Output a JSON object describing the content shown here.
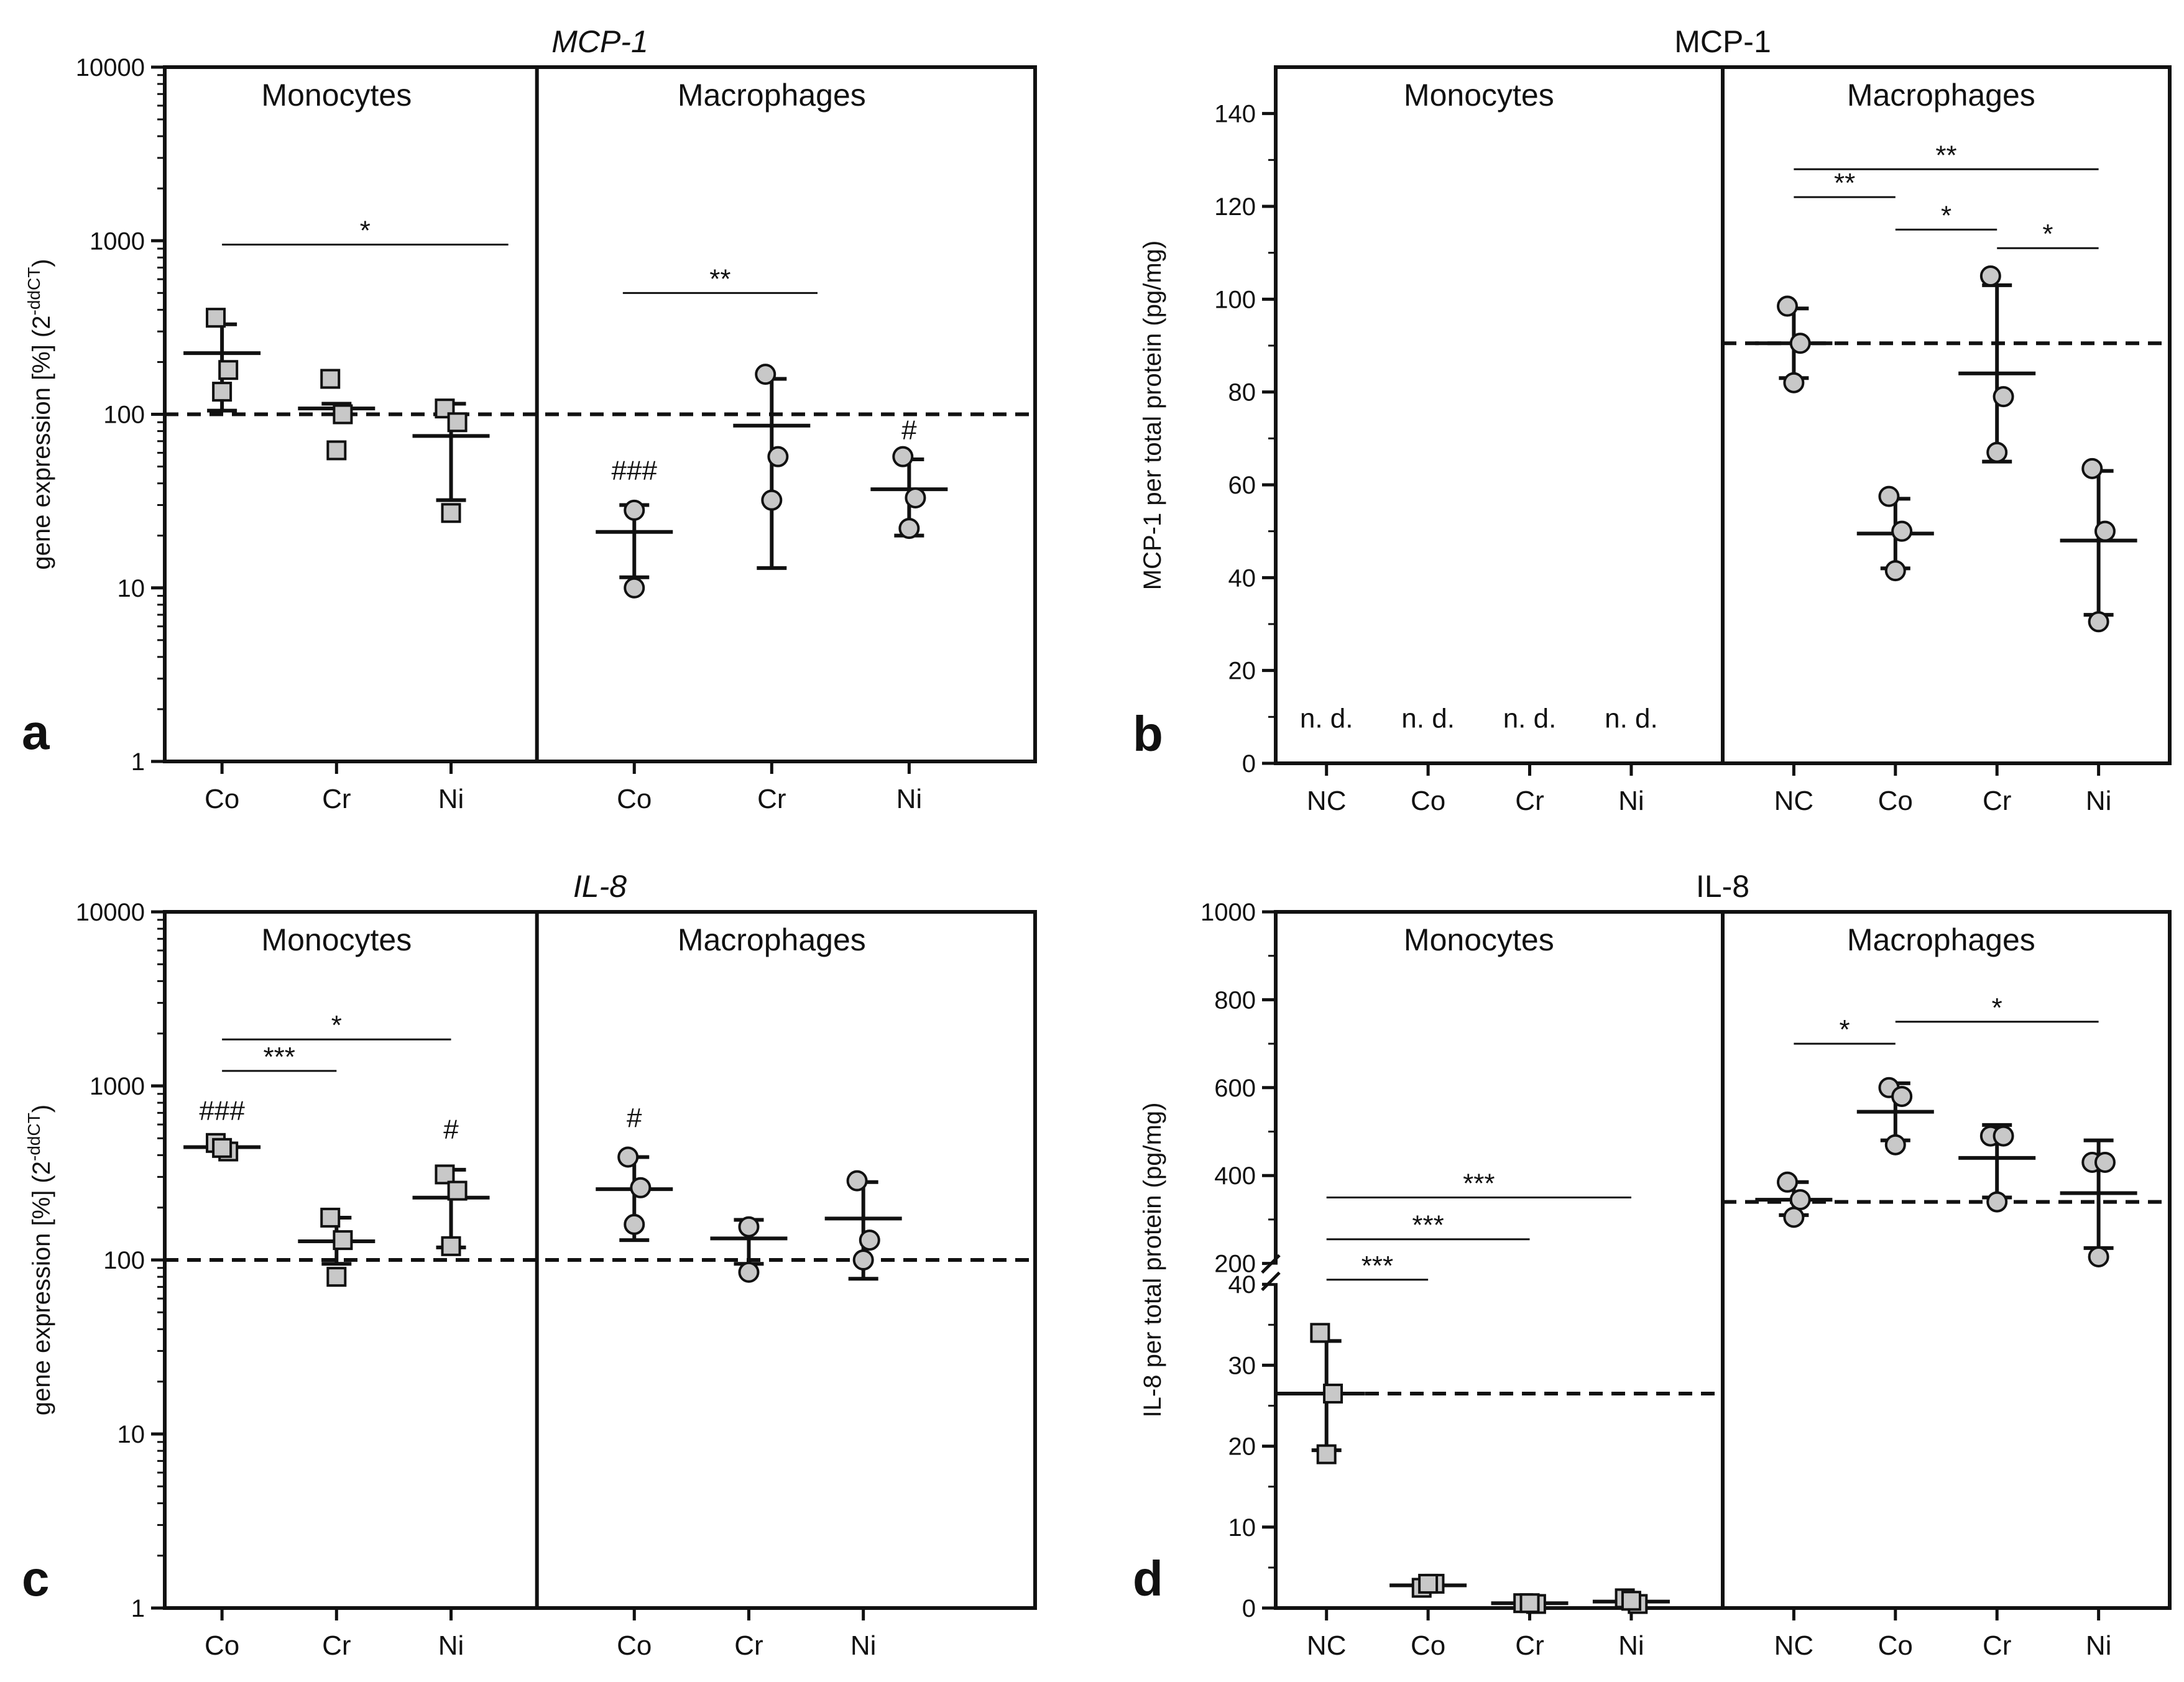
{
  "chart_data": [
    {
      "id": "a",
      "type": "scatter",
      "panel_letter": "a",
      "title": "MCP-1",
      "title_italic": true,
      "ylabel": "gene expression [%] (2",
      "ylabel_sup": "-ddCT",
      "ylabel_tail": ")",
      "yscale": "log",
      "ylim": [
        1,
        10000
      ],
      "yticks": [
        "1",
        "10",
        "100",
        "1000",
        "10000"
      ],
      "xlim": [
        -0.5,
        7.1
      ],
      "divider": 2.75,
      "baseline": 100,
      "groups": [
        {
          "label": "Monocytes",
          "x": 1
        },
        {
          "label": "Macrophages",
          "x": 4.8
        }
      ],
      "categories": [
        {
          "label": "Co",
          "x": 0
        },
        {
          "label": "Cr",
          "x": 1
        },
        {
          "label": "Ni",
          "x": 2
        },
        {
          "label": "Co",
          "x": 3.6
        },
        {
          "label": "Cr",
          "x": 4.8
        },
        {
          "label": "Ni",
          "x": 6
        }
      ],
      "series": [
        {
          "x": 0,
          "marker": "square",
          "points": [
            360,
            180,
            135
          ],
          "mean": 225,
          "sd": [
            105,
            330
          ]
        },
        {
          "x": 1,
          "marker": "square",
          "points": [
            160,
            100,
            62
          ],
          "mean": 108,
          "sd": [
            100,
            115
          ]
        },
        {
          "x": 2,
          "marker": "square",
          "points": [
            108,
            90,
            27
          ],
          "mean": 75,
          "sd": [
            32,
            115
          ]
        },
        {
          "x": 3.6,
          "marker": "circle",
          "points": [
            28,
            10
          ],
          "mean": 21,
          "sd": [
            11.5,
            30
          ]
        },
        {
          "x": 4.8,
          "marker": "circle",
          "points": [
            170,
            57,
            32
          ],
          "mean": 86,
          "sd": [
            13,
            160
          ]
        },
        {
          "x": 6,
          "marker": "circle",
          "points": [
            57,
            33,
            22
          ],
          "mean": 37,
          "sd": [
            20,
            55
          ]
        }
      ],
      "brackets": [
        {
          "x1": 0,
          "x2": 2.5,
          "y": 950,
          "label": "*"
        },
        {
          "x1": 3.5,
          "x2": 5.2,
          "y": 500,
          "label": "**"
        }
      ],
      "annotations": [
        {
          "x": 3.6,
          "y": 42,
          "label": "###"
        },
        {
          "x": 6,
          "y": 72,
          "label": "#"
        }
      ]
    },
    {
      "id": "b",
      "type": "scatter",
      "panel_letter": "b",
      "title": "MCP-1",
      "title_italic": false,
      "ylabel": "MCP-1 per total protein (pg/mg)",
      "yscale": "linear",
      "ylim": [
        0,
        150
      ],
      "yticks": [
        "0",
        "20",
        "40",
        "60",
        "80",
        "100",
        "120",
        "140"
      ],
      "xlim": [
        -0.5,
        8.3
      ],
      "divider": 3.9,
      "groups": [
        {
          "label": "Monocytes",
          "x": 1.5
        },
        {
          "label": "Macrophages",
          "x": 6.05
        }
      ],
      "categories": [
        {
          "label": "NC",
          "x": 0
        },
        {
          "label": "Co",
          "x": 1
        },
        {
          "label": "Cr",
          "x": 2
        },
        {
          "label": "Ni",
          "x": 3
        },
        {
          "label": "NC",
          "x": 4.6
        },
        {
          "label": "Co",
          "x": 5.6
        },
        {
          "label": "Cr",
          "x": 6.6
        },
        {
          "label": "Ni",
          "x": 7.6
        }
      ],
      "baseline_segments": [
        {
          "x1": 3.9,
          "x2": 8.3,
          "y": 90.5
        }
      ],
      "texts": [
        {
          "x": 0,
          "y": 5,
          "label": "n. d."
        },
        {
          "x": 1,
          "y": 5,
          "label": "n. d."
        },
        {
          "x": 2,
          "y": 5,
          "label": "n. d."
        },
        {
          "x": 3,
          "y": 5,
          "label": "n. d."
        }
      ],
      "series": [
        {
          "x": 4.6,
          "marker": "circle",
          "points": [
            98.5,
            90.5,
            82
          ],
          "mean": 90.5,
          "sd": [
            83,
            98
          ]
        },
        {
          "x": 5.6,
          "marker": "circle",
          "points": [
            57.5,
            50,
            41.5
          ],
          "mean": 49.5,
          "sd": [
            42,
            57
          ]
        },
        {
          "x": 6.6,
          "marker": "circle",
          "points": [
            105,
            79,
            67
          ],
          "mean": 84,
          "sd": [
            65,
            103
          ]
        },
        {
          "x": 7.6,
          "marker": "circle",
          "points": [
            63.5,
            50,
            30.5
          ],
          "mean": 48,
          "sd": [
            32,
            63
          ]
        }
      ],
      "brackets": [
        {
          "x1": 4.6,
          "x2": 7.6,
          "y": 128,
          "label": "**"
        },
        {
          "x1": 4.6,
          "x2": 5.6,
          "y": 122,
          "label": "**"
        },
        {
          "x1": 5.6,
          "x2": 6.6,
          "y": 115,
          "label": "*"
        },
        {
          "x1": 6.6,
          "x2": 7.6,
          "y": 111,
          "label": "*"
        }
      ]
    },
    {
      "id": "c",
      "type": "scatter",
      "panel_letter": "c",
      "title": "IL-8",
      "title_italic": true,
      "ylabel": "gene expression [%] (2",
      "ylabel_sup": "-ddCT",
      "ylabel_tail": ")",
      "yscale": "log",
      "ylim": [
        1,
        10000
      ],
      "yticks": [
        "1",
        "10",
        "100",
        "1000",
        "10000"
      ],
      "xlim": [
        -0.5,
        7.1
      ],
      "divider": 2.75,
      "baseline": 100,
      "groups": [
        {
          "label": "Monocytes",
          "x": 1
        },
        {
          "label": "Macrophages",
          "x": 4.8
        }
      ],
      "categories": [
        {
          "label": "Co",
          "x": 0
        },
        {
          "label": "Cr",
          "x": 1
        },
        {
          "label": "Ni",
          "x": 2
        },
        {
          "label": "Co",
          "x": 3.6
        },
        {
          "label": "Cr",
          "x": 4.6
        },
        {
          "label": "Ni",
          "x": 5.6
        }
      ],
      "series": [
        {
          "x": 0,
          "marker": "square",
          "points": [
            470,
            420,
            440
          ],
          "mean": 445,
          "sd": [
            430,
            460
          ]
        },
        {
          "x": 1,
          "marker": "square",
          "points": [
            175,
            130,
            80
          ],
          "mean": 128,
          "sd": [
            95,
            175
          ]
        },
        {
          "x": 2,
          "marker": "square",
          "points": [
            310,
            250,
            120
          ],
          "mean": 228,
          "sd": [
            118,
            330
          ]
        },
        {
          "x": 3.6,
          "marker": "circle",
          "points": [
            390,
            260,
            160
          ],
          "mean": 255,
          "sd": [
            130,
            390
          ]
        },
        {
          "x": 4.6,
          "marker": "circle",
          "points": [
            155,
            85
          ],
          "mean": 133,
          "sd": [
            95,
            170
          ]
        },
        {
          "x": 5.6,
          "marker": "circle",
          "points": [
            285,
            130,
            100
          ],
          "mean": 173,
          "sd": [
            78,
            280
          ]
        }
      ],
      "brackets": [
        {
          "x1": 0,
          "x2": 2,
          "y": 1850,
          "label": "*"
        },
        {
          "x1": 0,
          "x2": 1,
          "y": 1220,
          "label": "***"
        }
      ],
      "annotations": [
        {
          "x": 0,
          "y": 640,
          "label": "###"
        },
        {
          "x": 2,
          "y": 500,
          "label": "#"
        },
        {
          "x": 3.6,
          "y": 580,
          "label": "#"
        }
      ]
    },
    {
      "id": "d",
      "type": "scatter",
      "panel_letter": "d",
      "title": "IL-8",
      "title_italic": false,
      "ylabel": "IL-8 per total protein (pg/mg)",
      "yscale": "broken",
      "ylim": [
        0,
        1000
      ],
      "ybreak": {
        "lower_max": 40,
        "upper_min": 200
      },
      "yticks": [
        "0",
        "10",
        "20",
        "30",
        "40",
        "200",
        "400",
        "600",
        "800",
        "1000"
      ],
      "xlim": [
        -0.5,
        8.3
      ],
      "divider": 3.9,
      "groups": [
        {
          "label": "Monocytes",
          "x": 1.5
        },
        {
          "label": "Macrophages",
          "x": 6.05
        }
      ],
      "categories": [
        {
          "label": "NC",
          "x": 0
        },
        {
          "label": "Co",
          "x": 1
        },
        {
          "label": "Cr",
          "x": 2
        },
        {
          "label": "Ni",
          "x": 3
        },
        {
          "label": "NC",
          "x": 4.6
        },
        {
          "label": "Co",
          "x": 5.6
        },
        {
          "label": "Cr",
          "x": 6.6
        },
        {
          "label": "Ni",
          "x": 7.6
        }
      ],
      "baseline_segments": [
        {
          "x1": -0.5,
          "x2": 3.9,
          "y": 26.5
        },
        {
          "x1": 3.9,
          "x2": 8.3,
          "y": 340
        }
      ],
      "series": [
        {
          "x": 0,
          "marker": "square",
          "points": [
            34,
            26.5,
            19
          ],
          "mean": 26.5,
          "sd": [
            19.5,
            33
          ]
        },
        {
          "x": 1,
          "marker": "square",
          "points": [
            2.5,
            3,
            3
          ],
          "mean": 2.8,
          "sd": [
            2.2,
            3.2
          ]
        },
        {
          "x": 2,
          "marker": "square",
          "points": [
            0.6,
            0.5,
            0.6
          ],
          "mean": 0.6,
          "sd": [
            0.3,
            0.8
          ]
        },
        {
          "x": 3,
          "marker": "square",
          "points": [
            1.2,
            0.5,
            0.9
          ],
          "mean": 0.8,
          "sd": [
            0.4,
            1.2
          ]
        },
        {
          "x": 4.6,
          "marker": "circle",
          "points": [
            385,
            345,
            305
          ],
          "mean": 345,
          "sd": [
            310,
            385
          ]
        },
        {
          "x": 5.6,
          "marker": "circle",
          "points": [
            600,
            580,
            470
          ],
          "mean": 545,
          "sd": [
            480,
            610
          ]
        },
        {
          "x": 6.6,
          "marker": "circle",
          "points": [
            490,
            490,
            340
          ],
          "mean": 440,
          "sd": [
            350,
            515
          ]
        },
        {
          "x": 7.6,
          "marker": "circle",
          "points": [
            430,
            430,
            215
          ],
          "mean": 360,
          "sd": [
            235,
            480
          ]
        }
      ],
      "brackets": [
        {
          "x1": 0,
          "x2": 3,
          "y": 350,
          "label": "***"
        },
        {
          "x1": 0,
          "x2": 2,
          "y": 255,
          "label": "***"
        },
        {
          "x1": 0,
          "x2": 1,
          "y": 163,
          "label": "***"
        },
        {
          "x1": 4.6,
          "x2": 5.6,
          "y": 700,
          "label": "*"
        },
        {
          "x1": 5.6,
          "x2": 7.6,
          "y": 750,
          "label": "*"
        }
      ]
    }
  ]
}
